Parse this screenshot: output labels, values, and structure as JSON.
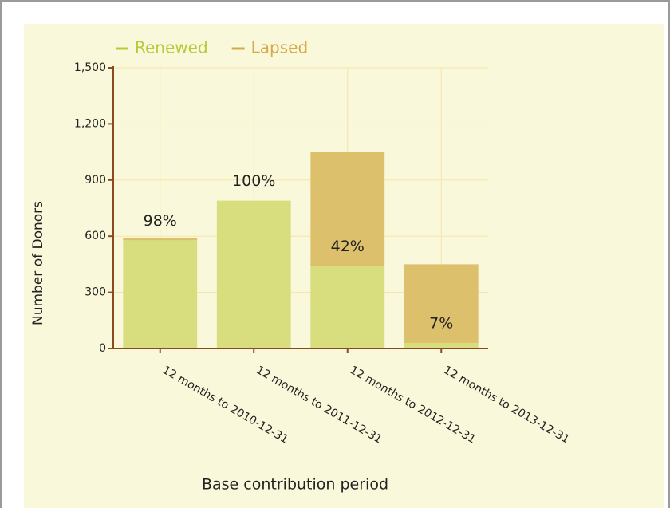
{
  "chart_data": {
    "type": "stacked_bar",
    "categories": [
      "12 months to 2010-12-31",
      "12 months to 2011-12-31",
      "12 months to 2012-12-31",
      "12 months to 2013-12-31"
    ],
    "series": [
      {
        "name": "Renewed",
        "color": "#d8de7e",
        "legend_color": "#b9c93c",
        "values": [
          578,
          790,
          440,
          30
        ]
      },
      {
        "name": "Lapsed",
        "color": "#ddc06c",
        "legend_color": "#d6aa4c",
        "values": [
          12,
          0,
          610,
          420
        ]
      }
    ],
    "annotations": [
      "98%",
      "100%",
      "42%",
      "7%"
    ],
    "y_label": "Number of Donors",
    "x_label": "Base contribution period",
    "ylim": [
      0,
      1500
    ],
    "yticks": [
      0,
      300,
      600,
      900,
      {
        "value": 1200,
        "label": "1,200"
      },
      {
        "value": 1500,
        "label": "1,500"
      }
    ],
    "grid": true
  }
}
